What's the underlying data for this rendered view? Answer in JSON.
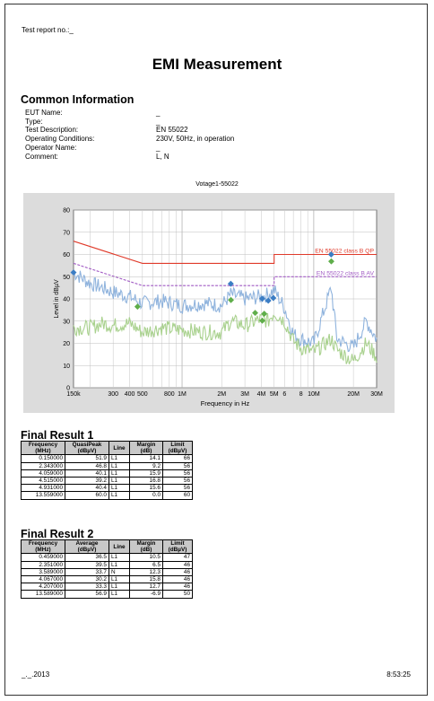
{
  "report": {
    "test_report_no": "Test report no.:_",
    "title": "EMI Measurement"
  },
  "common_info": {
    "heading": "Common Information",
    "rows": [
      {
        "label": "EUT Name:",
        "value": "_"
      },
      {
        "label": "Type:",
        "value": "_"
      },
      {
        "label": "Test Description:",
        "value": "EN 55022"
      },
      {
        "label": "Operating Conditions:",
        "value": "230V, 50Hz, in operation"
      },
      {
        "label": "Operator Name:",
        "value": "_"
      },
      {
        "label": "Comment:",
        "value": "L, N"
      }
    ]
  },
  "chart_data": {
    "type": "line",
    "title": "Votage1-55022",
    "xlabel": "Frequency in Hz",
    "ylabel": "Level in dBµV",
    "x_scale": "log",
    "xlim_hz": [
      150000,
      30000000
    ],
    "ylim": [
      0,
      80
    ],
    "y_ticks": [
      0,
      10,
      20,
      30,
      40,
      50,
      60,
      70,
      80
    ],
    "x_ticks": [
      {
        "hz": 150000,
        "label": "150k"
      },
      {
        "hz": 300000,
        "label": "300"
      },
      {
        "hz": 400000,
        "label": "400"
      },
      {
        "hz": 500000,
        "label": "500"
      },
      {
        "hz": 800000,
        "label": "800"
      },
      {
        "hz": 1000000,
        "label": "1M"
      },
      {
        "hz": 2000000,
        "label": "2M"
      },
      {
        "hz": 3000000,
        "label": "3M"
      },
      {
        "hz": 4000000,
        "label": "4M"
      },
      {
        "hz": 5000000,
        "label": "5M"
      },
      {
        "hz": 6000000,
        "label": "6"
      },
      {
        "hz": 8000000,
        "label": "8"
      },
      {
        "hz": 10000000,
        "label": "10M"
      },
      {
        "hz": 20000000,
        "label": "20M"
      },
      {
        "hz": 30000000,
        "label": "30M"
      }
    ],
    "grid": true,
    "limit_lines": [
      {
        "name": "EN 55022 class B QP",
        "color": "#e03a2a",
        "dash": false,
        "points": [
          [
            150000,
            66
          ],
          [
            500000,
            56
          ],
          [
            5000000,
            56
          ],
          [
            5000000,
            60
          ],
          [
            30000000,
            60
          ]
        ]
      },
      {
        "name": "EN 55022 class B AV",
        "color": "#a15bc4",
        "dash": true,
        "points": [
          [
            150000,
            56
          ],
          [
            500000,
            46
          ],
          [
            5000000,
            46
          ],
          [
            5000000,
            50
          ],
          [
            30000000,
            50
          ]
        ]
      }
    ],
    "traces": [
      {
        "color": "#8fb3dd",
        "points": [
          [
            150000,
            52
          ],
          [
            200000,
            47
          ],
          [
            250000,
            45
          ],
          [
            300000,
            43
          ],
          [
            400000,
            41
          ],
          [
            500000,
            38
          ],
          [
            700000,
            39
          ],
          [
            1000000,
            37
          ],
          [
            1500000,
            38
          ],
          [
            2000000,
            37
          ],
          [
            2343000,
            42
          ],
          [
            3000000,
            40
          ],
          [
            4000000,
            41
          ],
          [
            4500000,
            42
          ],
          [
            5000000,
            44
          ],
          [
            6000000,
            36
          ],
          [
            7000000,
            24
          ],
          [
            8000000,
            22
          ],
          [
            10000000,
            20
          ],
          [
            13559000,
            45
          ],
          [
            15000000,
            22
          ],
          [
            20000000,
            18
          ],
          [
            25000000,
            30
          ],
          [
            30000000,
            22
          ]
        ]
      },
      {
        "color": "#a9d18e",
        "points": [
          [
            150000,
            27
          ],
          [
            200000,
            27
          ],
          [
            250000,
            29
          ],
          [
            300000,
            28
          ],
          [
            400000,
            29
          ],
          [
            500000,
            25
          ],
          [
            700000,
            27
          ],
          [
            1000000,
            26
          ],
          [
            1500000,
            25
          ],
          [
            2000000,
            25
          ],
          [
            2343000,
            30
          ],
          [
            3000000,
            28
          ],
          [
            4000000,
            31
          ],
          [
            4500000,
            30
          ],
          [
            5000000,
            34
          ],
          [
            6000000,
            30
          ],
          [
            7000000,
            21
          ],
          [
            8000000,
            18
          ],
          [
            10000000,
            16
          ],
          [
            13589000,
            22
          ],
          [
            15000000,
            17
          ],
          [
            20000000,
            12
          ],
          [
            25000000,
            20
          ],
          [
            30000000,
            14
          ]
        ]
      }
    ],
    "markers": [
      {
        "hz": 150000,
        "level": 51.9,
        "color": "#3b7dc4"
      },
      {
        "hz": 2343000,
        "level": 46.8,
        "color": "#3b7dc4"
      },
      {
        "hz": 4059000,
        "level": 40.1,
        "color": "#3b7dc4"
      },
      {
        "hz": 4515000,
        "level": 39.2,
        "color": "#3b7dc4"
      },
      {
        "hz": 4931000,
        "level": 40.4,
        "color": "#3b7dc4"
      },
      {
        "hz": 13559000,
        "level": 60.0,
        "color": "#3b7dc4"
      },
      {
        "hz": 459000,
        "level": 36.5,
        "color": "#5fae4a"
      },
      {
        "hz": 2351000,
        "level": 39.5,
        "color": "#5fae4a"
      },
      {
        "hz": 3589000,
        "level": 33.7,
        "color": "#5fae4a"
      },
      {
        "hz": 4067000,
        "level": 30.2,
        "color": "#5fae4a"
      },
      {
        "hz": 4207000,
        "level": 33.3,
        "color": "#5fae4a"
      },
      {
        "hz": 13589000,
        "level": 56.9,
        "color": "#5fae4a"
      }
    ]
  },
  "final_result_1": {
    "heading": "Final Result 1",
    "headers": [
      "Frequency (MHz)",
      "QuasiPeak (dBµV)",
      "Line",
      "Margin (dB)",
      "Limit (dBµV)"
    ],
    "rows": [
      [
        "0.150000",
        "51.9",
        "L1",
        "14.1",
        "66"
      ],
      [
        "2.343000",
        "46.8",
        "L1",
        "9.2",
        "56"
      ],
      [
        "4.059000",
        "40.1",
        "L1",
        "15.9",
        "56"
      ],
      [
        "4.515000",
        "39.2",
        "L1",
        "16.8",
        "56"
      ],
      [
        "4.931000",
        "40.4",
        "L1",
        "15.6",
        "56"
      ],
      [
        "13.559000",
        "60.0",
        "L1",
        "0.0",
        "60"
      ]
    ]
  },
  "final_result_2": {
    "heading": "Final Result 2",
    "headers": [
      "Frequency (MHz)",
      "Average (dBµV)",
      "Line",
      "Margin (dB)",
      "Limit (dBµV)"
    ],
    "rows": [
      [
        "0.459000",
        "36.5",
        "L1",
        "10.5",
        "47"
      ],
      [
        "2.351000",
        "39.5",
        "L1",
        "6.5",
        "46"
      ],
      [
        "3.589000",
        "33.7",
        "N",
        "12.3",
        "46"
      ],
      [
        "4.067000",
        "30.2",
        "L1",
        "15.8",
        "46"
      ],
      [
        "4.207000",
        "33.3",
        "L1",
        "12.7",
        "46"
      ],
      [
        "13.589000",
        "56.9",
        "L1",
        "-6.9",
        "50"
      ]
    ]
  },
  "footer": {
    "date": "_._.2013",
    "time": "8:53:25"
  },
  "colors": {
    "chart_background": "#dcdcdc",
    "plot_background": "#ffffff",
    "table_header": "#c8c8c8"
  }
}
